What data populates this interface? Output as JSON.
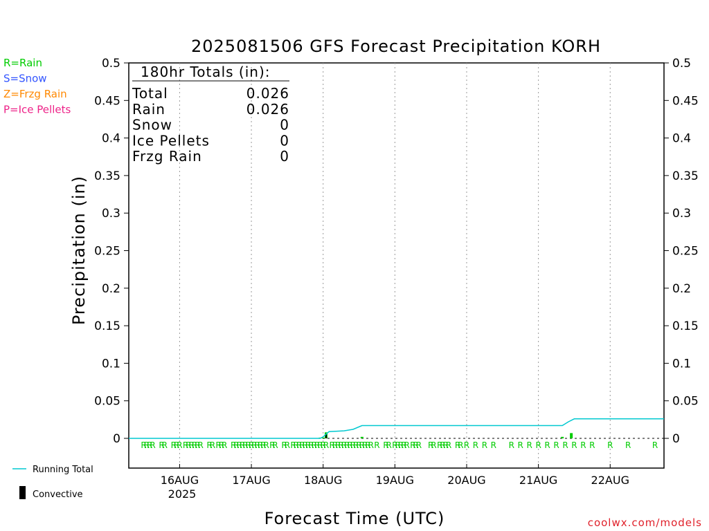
{
  "title": "2025081506 GFS Forecast Precipitation KORH",
  "ylabel": "Precipitation (in)",
  "xlabel": "Forecast Time (UTC)",
  "credit": "coolwx.com/models",
  "year_label": "2025",
  "legend_left": [
    {
      "text": "R=Rain",
      "color": "#00cc00"
    },
    {
      "text": "S=Snow",
      "color": "#3355ff"
    },
    {
      "text": "Z=Frzg Rain",
      "color": "#ff8800"
    },
    {
      "text": "P=Ice Pellets",
      "color": "#ee2288"
    }
  ],
  "legend_bottom": {
    "running_total": "Running Total",
    "convective": "Convective"
  },
  "totals": {
    "header": "180hr Totals (in):",
    "rows": [
      {
        "label": "Total",
        "value": "0.026"
      },
      {
        "label": "Rain",
        "value": "0.026"
      },
      {
        "label": "Snow",
        "value": "0"
      },
      {
        "label": "Ice Pellets",
        "value": "0"
      },
      {
        "label": "Frzg Rain",
        "value": "0"
      }
    ]
  },
  "chart_data": {
    "type": "bar",
    "ylim": [
      0,
      0.5
    ],
    "y_ticks": [
      0,
      0.05,
      0.1,
      0.15,
      0.2,
      0.25,
      0.3,
      0.35,
      0.4,
      0.45,
      0.5
    ],
    "y_tick_labels": [
      "0",
      "0.05",
      "0.1",
      "0.15",
      "0.2",
      "0.25",
      "0.3",
      "0.35",
      "0.4",
      "0.45",
      "0.5"
    ],
    "x_range_days": [
      "2025-08-15T07:00Z",
      "2025-08-22T18:00Z"
    ],
    "x_ticks": [
      "16AUG",
      "17AUG",
      "18AUG",
      "19AUG",
      "20AUG",
      "21AUG",
      "22AUG"
    ],
    "grid": "vertical dotted at each day",
    "colors": {
      "rain": "#00cc00",
      "running_total": "#00c8d0",
      "convective": "#000000"
    },
    "running_total": [
      {
        "t": "2025-08-15T07:00Z",
        "v": 0
      },
      {
        "t": "2025-08-17T23:00Z",
        "v": 0
      },
      {
        "t": "2025-08-18T00:00Z",
        "v": 0.002
      },
      {
        "t": "2025-08-18T02:00Z",
        "v": 0.009
      },
      {
        "t": "2025-08-18T07:00Z",
        "v": 0.01
      },
      {
        "t": "2025-08-18T10:00Z",
        "v": 0.012
      },
      {
        "t": "2025-08-18T13:00Z",
        "v": 0.017
      },
      {
        "t": "2025-08-21T08:00Z",
        "v": 0.017
      },
      {
        "t": "2025-08-21T10:00Z",
        "v": 0.022
      },
      {
        "t": "2025-08-21T12:00Z",
        "v": 0.026
      },
      {
        "t": "2025-08-22T18:00Z",
        "v": 0.026
      }
    ],
    "rain_bars": [
      {
        "t": "2025-08-17T23:00Z",
        "v": 0.001
      },
      {
        "t": "2025-08-18T00:00Z",
        "v": 0.001
      },
      {
        "t": "2025-08-18T01:00Z",
        "v": 0.008
      },
      {
        "t": "2025-08-18T13:00Z",
        "v": 0.002
      },
      {
        "t": "2025-08-21T08:00Z",
        "v": 0.002
      },
      {
        "t": "2025-08-21T11:00Z",
        "v": 0.007
      }
    ],
    "convective_bars": [
      {
        "t": "2025-08-18T01:00Z",
        "v": 0.006
      }
    ],
    "r_markers": [
      "2025-08-15T12:00Z",
      "2025-08-15T13:00Z",
      "2025-08-15T14:00Z",
      "2025-08-15T15:00Z",
      "2025-08-15T18:00Z",
      "2025-08-15T19:00Z",
      "2025-08-15T22:00Z",
      "2025-08-15T23:00Z",
      "2025-08-16T00:00Z",
      "2025-08-16T02:00Z",
      "2025-08-16T03:00Z",
      "2025-08-16T04:00Z",
      "2025-08-16T05:00Z",
      "2025-08-16T06:00Z",
      "2025-08-16T07:00Z",
      "2025-08-16T10:00Z",
      "2025-08-16T11:00Z",
      "2025-08-16T13:00Z",
      "2025-08-16T14:00Z",
      "2025-08-16T15:00Z",
      "2025-08-16T18:00Z",
      "2025-08-16T19:00Z",
      "2025-08-16T20:00Z",
      "2025-08-16T21:00Z",
      "2025-08-16T22:00Z",
      "2025-08-16T23:00Z",
      "2025-08-17T00:00Z",
      "2025-08-17T01:00Z",
      "2025-08-17T02:00Z",
      "2025-08-17T03:00Z",
      "2025-08-17T04:00Z",
      "2025-08-17T05:00Z",
      "2025-08-17T07:00Z",
      "2025-08-17T08:00Z",
      "2025-08-17T11:00Z",
      "2025-08-17T12:00Z",
      "2025-08-17T14:00Z",
      "2025-08-17T15:00Z",
      "2025-08-17T16:00Z",
      "2025-08-17T17:00Z",
      "2025-08-17T18:00Z",
      "2025-08-17T19:00Z",
      "2025-08-17T20:00Z",
      "2025-08-17T21:00Z",
      "2025-08-17T22:00Z",
      "2025-08-17T23:00Z",
      "2025-08-18T00:00Z",
      "2025-08-18T01:00Z",
      "2025-08-18T03:00Z",
      "2025-08-18T04:00Z",
      "2025-08-18T05:00Z",
      "2025-08-18T06:00Z",
      "2025-08-18T07:00Z",
      "2025-08-18T08:00Z",
      "2025-08-18T09:00Z",
      "2025-08-18T10:00Z",
      "2025-08-18T11:00Z",
      "2025-08-18T12:00Z",
      "2025-08-18T13:00Z",
      "2025-08-18T14:00Z",
      "2025-08-18T15:00Z",
      "2025-08-18T16:00Z",
      "2025-08-18T18:00Z",
      "2025-08-18T21:00Z",
      "2025-08-18T22:00Z",
      "2025-08-19T00:00Z",
      "2025-08-19T01:00Z",
      "2025-08-19T02:00Z",
      "2025-08-19T03:00Z",
      "2025-08-19T04:00Z",
      "2025-08-19T06:00Z",
      "2025-08-19T07:00Z",
      "2025-08-19T08:00Z",
      "2025-08-19T12:00Z",
      "2025-08-19T13:00Z",
      "2025-08-19T15:00Z",
      "2025-08-19T16:00Z",
      "2025-08-19T17:00Z",
      "2025-08-19T18:00Z",
      "2025-08-19T21:00Z",
      "2025-08-19T22:00Z",
      "2025-08-20T00:00Z",
      "2025-08-20T03:00Z",
      "2025-08-20T06:00Z",
      "2025-08-20T09:00Z",
      "2025-08-20T15:00Z",
      "2025-08-20T18:00Z",
      "2025-08-20T21:00Z",
      "2025-08-21T00:00Z",
      "2025-08-21T03:00Z",
      "2025-08-21T06:00Z",
      "2025-08-21T09:00Z",
      "2025-08-21T12:00Z",
      "2025-08-21T15:00Z",
      "2025-08-21T18:00Z",
      "2025-08-22T00:00Z",
      "2025-08-22T06:00Z",
      "2025-08-22T15:00Z"
    ]
  }
}
